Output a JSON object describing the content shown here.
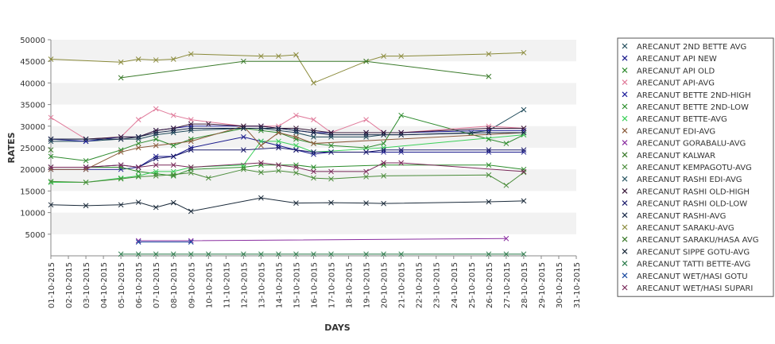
{
  "chart_data": {
    "type": "line",
    "title": "",
    "xlabel": "DAYS",
    "ylabel": "RATES",
    "ylim": [
      0,
      50000
    ],
    "yticks": [
      5000,
      10000,
      15000,
      20000,
      25000,
      30000,
      35000,
      40000,
      45000,
      50000
    ],
    "grid": "alternating horizontal bands",
    "legend_position": "right",
    "categories": [
      "01-10-2015",
      "02-10-2015",
      "03-10-2015",
      "04-10-2015",
      "05-10-2015",
      "06-10-2015",
      "07-10-2015",
      "08-10-2015",
      "09-10-2015",
      "10-10-2015",
      "11-10-2015",
      "12-10-2015",
      "13-10-2015",
      "14-10-2015",
      "15-10-2015",
      "16-10-2015",
      "17-10-2015",
      "18-10-2015",
      "19-10-2015",
      "20-10-2015",
      "21-10-2015",
      "22-10-2015",
      "23-10-2015",
      "24-10-2015",
      "25-10-2015",
      "26-10-2015",
      "27-10-2015",
      "28-10-2015",
      "29-10-2015",
      "30-10-2015",
      "31-10-2015"
    ],
    "series": [
      {
        "name": "ARECANUT 2ND BETTE AVG",
        "color": "#1f4a5a",
        "values": [
          26500,
          null,
          26500,
          null,
          27000,
          27000,
          28000,
          28500,
          29000,
          null,
          null,
          29500,
          29500,
          29000,
          28500,
          27500,
          27500,
          null,
          27500,
          28000,
          28000,
          null,
          null,
          null,
          28500,
          29000,
          null,
          33800,
          null,
          null,
          null
        ]
      },
      {
        "name": "ARECANUT API NEW",
        "color": "#1a1a8c",
        "values": [
          20000,
          null,
          20000,
          null,
          20000,
          20500,
          23000,
          23000,
          25000,
          null,
          null,
          27500,
          26500,
          25500,
          24500,
          23500,
          24000,
          null,
          24000,
          24000,
          24000,
          null,
          null,
          null,
          null,
          24000,
          null,
          24000,
          null,
          null,
          null
        ]
      },
      {
        "name": "ARECANUT API OLD",
        "color": "#2e8b2e",
        "values": [
          23000,
          null,
          22000,
          null,
          24500,
          26000,
          27000,
          25500,
          27000,
          null,
          null,
          29500,
          29000,
          28500,
          27000,
          26000,
          25500,
          null,
          25000,
          26000,
          32500,
          null,
          null,
          null,
          null,
          27000,
          26000,
          28000,
          null,
          null,
          null
        ]
      },
      {
        "name": "ARECANUT API-AVG",
        "color": "#e07a9a",
        "values": [
          32000,
          null,
          27000,
          null,
          27500,
          31500,
          34000,
          32500,
          31500,
          null,
          null,
          30000,
          30000,
          30000,
          32500,
          31500,
          28500,
          null,
          31500,
          28500,
          28500,
          null,
          null,
          null,
          null,
          30000,
          null,
          29500,
          null,
          null,
          null
        ]
      },
      {
        "name": "ARECANUT BETTE 2ND-HIGH",
        "color": "#1e1e9c",
        "values": [
          27000,
          null,
          26500,
          null,
          27500,
          27500,
          29000,
          29500,
          30000,
          null,
          null,
          30000,
          30000,
          29500,
          29000,
          28500,
          28500,
          null,
          28500,
          28500,
          28500,
          null,
          null,
          null,
          null,
          29000,
          null,
          29000,
          null,
          null,
          null
        ]
      },
      {
        "name": "ARECANUT BETTE 2ND-LOW",
        "color": "#2a8c2a",
        "values": [
          20500,
          null,
          20500,
          null,
          20500,
          19500,
          19000,
          18500,
          20000,
          null,
          null,
          20500,
          21000,
          21000,
          21000,
          20500,
          null,
          null,
          null,
          21000,
          null,
          null,
          null,
          null,
          null,
          21000,
          null,
          20000,
          null,
          null,
          null
        ]
      },
      {
        "name": "ARECANUT BETTE-AVG",
        "color": "#3cd05a",
        "values": [
          17000,
          null,
          17000,
          null,
          18000,
          18500,
          19500,
          19500,
          20500,
          null,
          null,
          21000,
          26500,
          26500,
          25500,
          24000,
          null,
          null,
          null,
          25000,
          null,
          null,
          null,
          null,
          null,
          null,
          null,
          28000,
          null,
          null,
          null
        ]
      },
      {
        "name": "ARECANUT EDI-AVG",
        "color": "#8b5a3a",
        "values": [
          20000,
          null,
          20000,
          null,
          24000,
          25000,
          25500,
          null,
          26500,
          null,
          null,
          30000,
          25500,
          28500,
          27500,
          26000,
          null,
          null,
          null,
          null,
          null,
          null,
          null,
          null,
          null,
          null,
          null,
          28500,
          null,
          null,
          null
        ]
      },
      {
        "name": "ARECANUT GORABALU-AVG",
        "color": "#8a2ea0",
        "values": [
          null,
          null,
          null,
          null,
          null,
          3500,
          null,
          null,
          3500,
          null,
          null,
          null,
          null,
          null,
          null,
          null,
          null,
          null,
          null,
          null,
          null,
          null,
          null,
          null,
          null,
          null,
          4000,
          null,
          null,
          null,
          null
        ]
      },
      {
        "name": "ARECANUT KALWAR",
        "color": "#3a7a2a",
        "values": [
          24500,
          null,
          null,
          null,
          null,
          null,
          null,
          null,
          null,
          null,
          null,
          null,
          null,
          null,
          null,
          null,
          null,
          null,
          null,
          null,
          null,
          null,
          null,
          null,
          null,
          null,
          null,
          null,
          null,
          null,
          null
        ]
      },
      {
        "name": "ARECANUT KEMPAGOTU-AVG",
        "color": "#4a8c3a",
        "values": [
          17200,
          null,
          17000,
          null,
          17800,
          18300,
          18500,
          18800,
          19200,
          18000,
          null,
          20000,
          19300,
          19700,
          19200,
          18000,
          17800,
          null,
          18300,
          18500,
          null,
          null,
          null,
          null,
          null,
          18700,
          16300,
          19300,
          null,
          null,
          null
        ]
      },
      {
        "name": "ARECANUT RASHI EDI-AVG",
        "color": "#2e5a66",
        "values": [
          null,
          null,
          null,
          null,
          null,
          null,
          null,
          null,
          null,
          null,
          null,
          null,
          null,
          null,
          null,
          null,
          null,
          null,
          null,
          null,
          null,
          null,
          null,
          null,
          null,
          null,
          null,
          null,
          null,
          null,
          null
        ]
      },
      {
        "name": "ARECANUT RASHI OLD-HIGH",
        "color": "#3a1a3a",
        "values": [
          27000,
          null,
          27000,
          null,
          27500,
          27500,
          29000,
          29500,
          30500,
          30500,
          null,
          30000,
          30000,
          29500,
          29500,
          29000,
          28500,
          null,
          28500,
          28500,
          28500,
          null,
          null,
          null,
          null,
          29500,
          null,
          29500,
          null,
          null,
          null
        ]
      },
      {
        "name": "ARECANUT RASHI OLD-LOW",
        "color": "#1a1a6a",
        "values": [
          20500,
          null,
          20500,
          null,
          21000,
          20500,
          22500,
          23000,
          24500,
          null,
          null,
          24500,
          null,
          25000,
          24500,
          24000,
          24000,
          null,
          24000,
          24500,
          24500,
          null,
          null,
          null,
          null,
          24500,
          null,
          24500,
          null,
          null,
          null
        ]
      },
      {
        "name": "ARECANUT RASHI-AVG",
        "color": "#1a2a4a",
        "values": [
          27000,
          null,
          27000,
          null,
          27000,
          27500,
          28500,
          29000,
          29500,
          null,
          null,
          29500,
          29500,
          29500,
          29000,
          28500,
          28000,
          null,
          28000,
          28000,
          28000,
          null,
          null,
          null,
          null,
          28500,
          null,
          28500,
          null,
          null,
          null
        ]
      },
      {
        "name": "ARECANUT SARAKU-AVG",
        "color": "#8a8a3a",
        "values": [
          45500,
          null,
          null,
          null,
          44800,
          45500,
          45300,
          45500,
          46700,
          null,
          null,
          null,
          46200,
          46200,
          46500,
          40000,
          null,
          null,
          45000,
          46200,
          46200,
          null,
          null,
          null,
          null,
          46700,
          null,
          47000,
          null,
          null,
          null
        ]
      },
      {
        "name": "ARECANUT SARAKU/HASA AVG",
        "color": "#3a7a2a",
        "values": [
          null,
          null,
          null,
          null,
          41200,
          null,
          null,
          null,
          null,
          null,
          null,
          45000,
          null,
          null,
          null,
          null,
          null,
          null,
          45000,
          null,
          null,
          null,
          null,
          null,
          null,
          41500,
          null,
          null,
          null,
          null,
          null
        ]
      },
      {
        "name": "ARECANUT SIPPE GOTU-AVG",
        "color": "#1a2a3a",
        "values": [
          11800,
          null,
          11600,
          null,
          11800,
          12400,
          11200,
          12300,
          10300,
          null,
          null,
          null,
          13400,
          null,
          12200,
          null,
          12300,
          null,
          12200,
          12100,
          null,
          null,
          null,
          null,
          null,
          12500,
          null,
          12700,
          null,
          null,
          null
        ]
      },
      {
        "name": "ARECANUT TATTI BETTE-AVG",
        "color": "#2a7a4a",
        "values": [
          null,
          null,
          null,
          null,
          400,
          400,
          400,
          400,
          400,
          400,
          null,
          400,
          400,
          400,
          400,
          400,
          400,
          null,
          400,
          400,
          400,
          null,
          null,
          null,
          null,
          400,
          400,
          400,
          null,
          null,
          null
        ]
      },
      {
        "name": "ARECANUT WET/HASI GOTU",
        "color": "#1a4aa0",
        "values": [
          null,
          null,
          null,
          null,
          null,
          3200,
          null,
          null,
          3200,
          null,
          null,
          null,
          null,
          null,
          null,
          null,
          null,
          null,
          null,
          null,
          null,
          null,
          null,
          null,
          null,
          null,
          null,
          null,
          null,
          null,
          null
        ]
      },
      {
        "name": "ARECANUT WET/HASI SUPARI",
        "color": "#7a2a5a",
        "values": [
          20500,
          null,
          20500,
          null,
          21000,
          20500,
          21000,
          21000,
          20500,
          null,
          null,
          null,
          21500,
          21000,
          20500,
          19500,
          19500,
          null,
          19500,
          21500,
          21500,
          null,
          null,
          null,
          null,
          null,
          null,
          19500,
          null,
          null,
          null
        ]
      }
    ]
  }
}
